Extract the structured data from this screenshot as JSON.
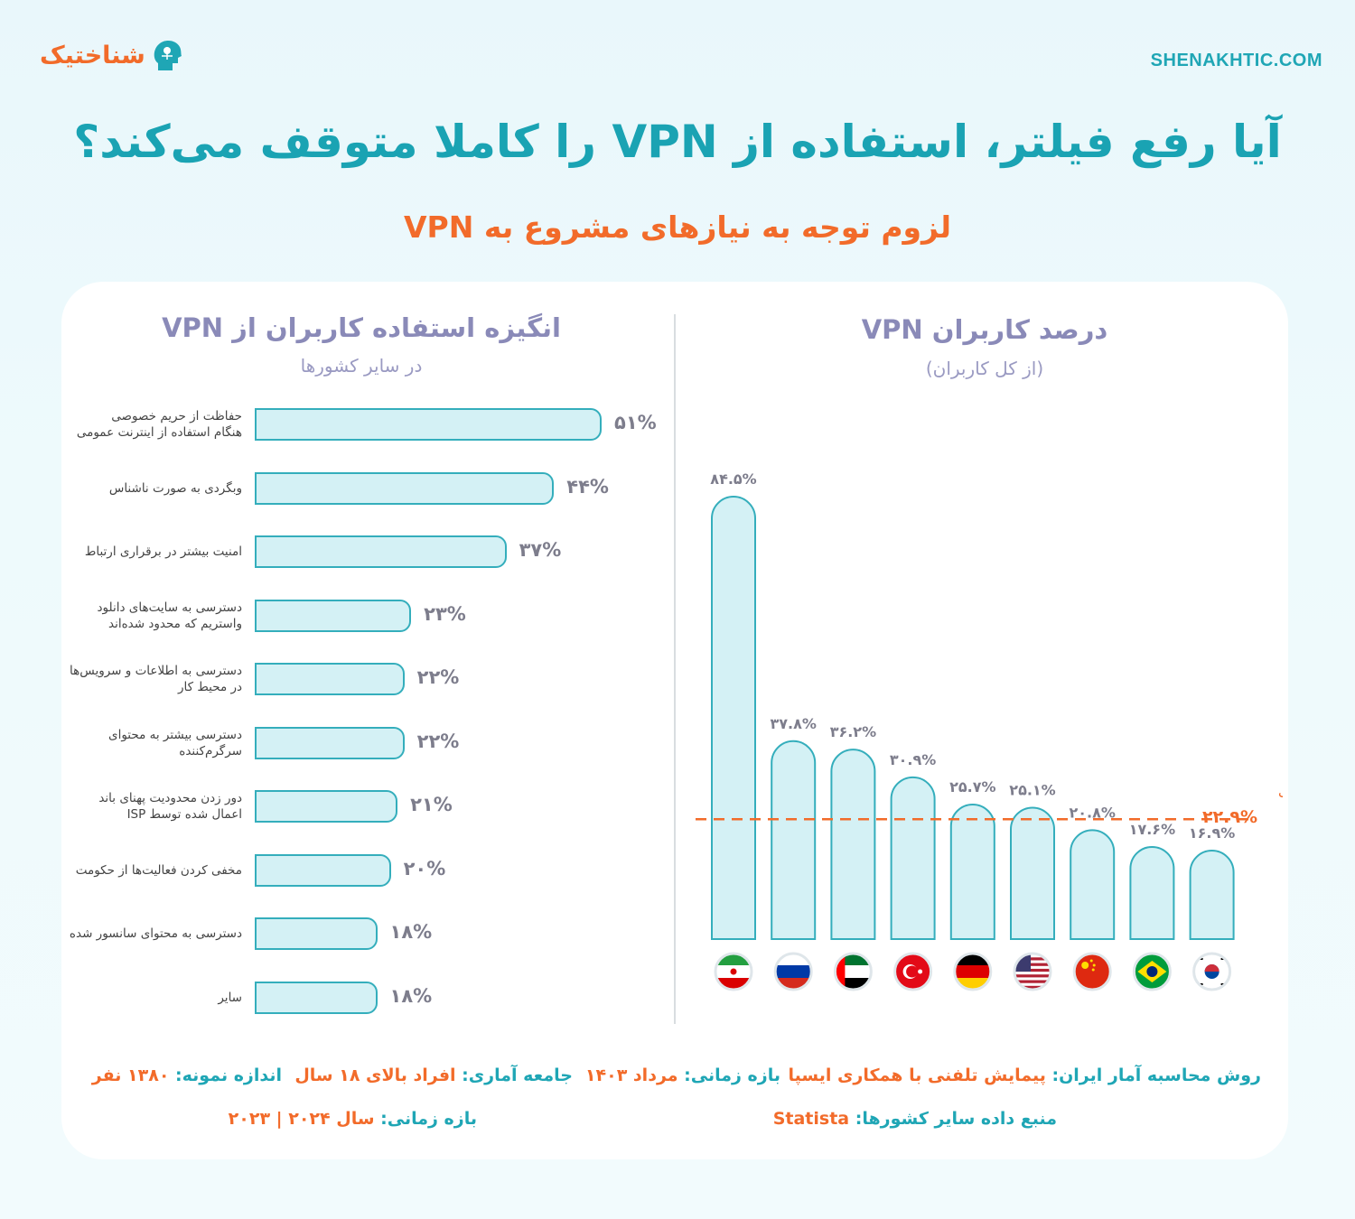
{
  "header": {
    "logo_text": "شناختیک",
    "site": "SHENAKHTIC.COM",
    "title": "آیا رفع فیلتر، استفاده از VPN را کاملا متوقف می‌کند؟",
    "subtitle": "لزوم توجه به نیازهای مشروع به VPN"
  },
  "left_panel": {
    "title": "انگیزه استفاده کاربران از VPN",
    "subtitle": "در سایر کشورها"
  },
  "right_panel": {
    "title": "درصد کاربران VPN",
    "subtitle": "(از کل کاربران)"
  },
  "colors": {
    "teal": "#1fa6b5",
    "orange": "#f26b2a",
    "bar_fill": "#d4f1f5",
    "bar_stroke": "#34aebc",
    "grey_text": "#7d7d8c"
  },
  "chart_data": [
    {
      "type": "bar",
      "orientation": "horizontal",
      "title": "انگیزه استفاده کاربران از VPN",
      "subtitle": "در سایر کشورها",
      "unit": "%",
      "categories": [
        [
          "حفاظت از حریم خصوصی",
          "هنگام استفاده از اینترنت عمومی"
        ],
        [
          "وبگردی به صورت ناشناس"
        ],
        [
          "امنیت بیشتر در برقراری ارتباط"
        ],
        [
          "دسترسی به سایت‌های دانلود",
          "واستریم که محدود شده‌اند"
        ],
        [
          "دسترسی به اطلاعات و سرویس‌ها",
          "در محیط کار"
        ],
        [
          "دسترسی بیشتر به محتوای",
          "سرگرم‌کننده"
        ],
        [
          "دور زدن محدودیت پهنای باند",
          "اعمال شده توسط ISP"
        ],
        [
          "مخفی کردن فعالیت‌ها از حکومت"
        ],
        [
          "دسترسی به محتوای سانسور شده"
        ],
        [
          "سایر"
        ]
      ],
      "values": [
        51,
        44,
        37,
        23,
        22,
        22,
        21,
        20,
        18,
        18
      ],
      "value_labels": [
        "۵۱%",
        "۴۴%",
        "۳۷%",
        "۲۳%",
        "۲۲%",
        "۲۲%",
        "۲۱%",
        "۲۰%",
        "۱۸%",
        "۱۸%"
      ]
    },
    {
      "type": "bar",
      "orientation": "vertical",
      "title": "درصد کاربران VPN",
      "subtitle": "(از کل کاربران)",
      "unit": "%",
      "categories": [
        "Iran",
        "Russia",
        "UAE",
        "Turkey",
        "Germany",
        "USA",
        "China",
        "Brazil",
        "South Korea"
      ],
      "flag_icons": [
        "iran-flag-icon",
        "russia-flag-icon",
        "uae-flag-icon",
        "turkey-flag-icon",
        "germany-flag-icon",
        "usa-flag-icon",
        "china-flag-icon",
        "brazil-flag-icon",
        "south-korea-flag-icon"
      ],
      "values": [
        84.5,
        37.8,
        36.2,
        30.9,
        25.7,
        25.1,
        20.8,
        17.6,
        16.9
      ],
      "value_labels": [
        "۸۴.۵%",
        "۳۷.۸%",
        "۳۶.۲%",
        "۳۰.۹%",
        "۲۵.۷%",
        "۲۵.۱%",
        "۲۰.۸%",
        "۱۷.۶%",
        "۱۶.۹%"
      ],
      "ylim": [
        0,
        90
      ],
      "reference_line": {
        "label": "میانگین جهانی",
        "value": 22.9,
        "value_label": "۲۲.۹%"
      }
    }
  ],
  "footer": {
    "method_label": "روش محاسبه آمار ایران:",
    "method_value": "پیمایش تلفنی با همکاری ایسپا",
    "period_label": "بازه زمانی:",
    "period_value": "مرداد ۱۴۰۳",
    "population_label": "جامعه آماری:",
    "population_value": "افراد بالای ۱۸ سال",
    "sample_label": "اندازه نمونه:",
    "sample_value": "۱۳۸۰ نفر",
    "source_label": "منبع داده سایر کشورها:",
    "source_value": "Statista",
    "period2_label": "بازه زمانی:",
    "period2_value": "سال ۲۰۲۴ | ۲۰۲۳"
  }
}
